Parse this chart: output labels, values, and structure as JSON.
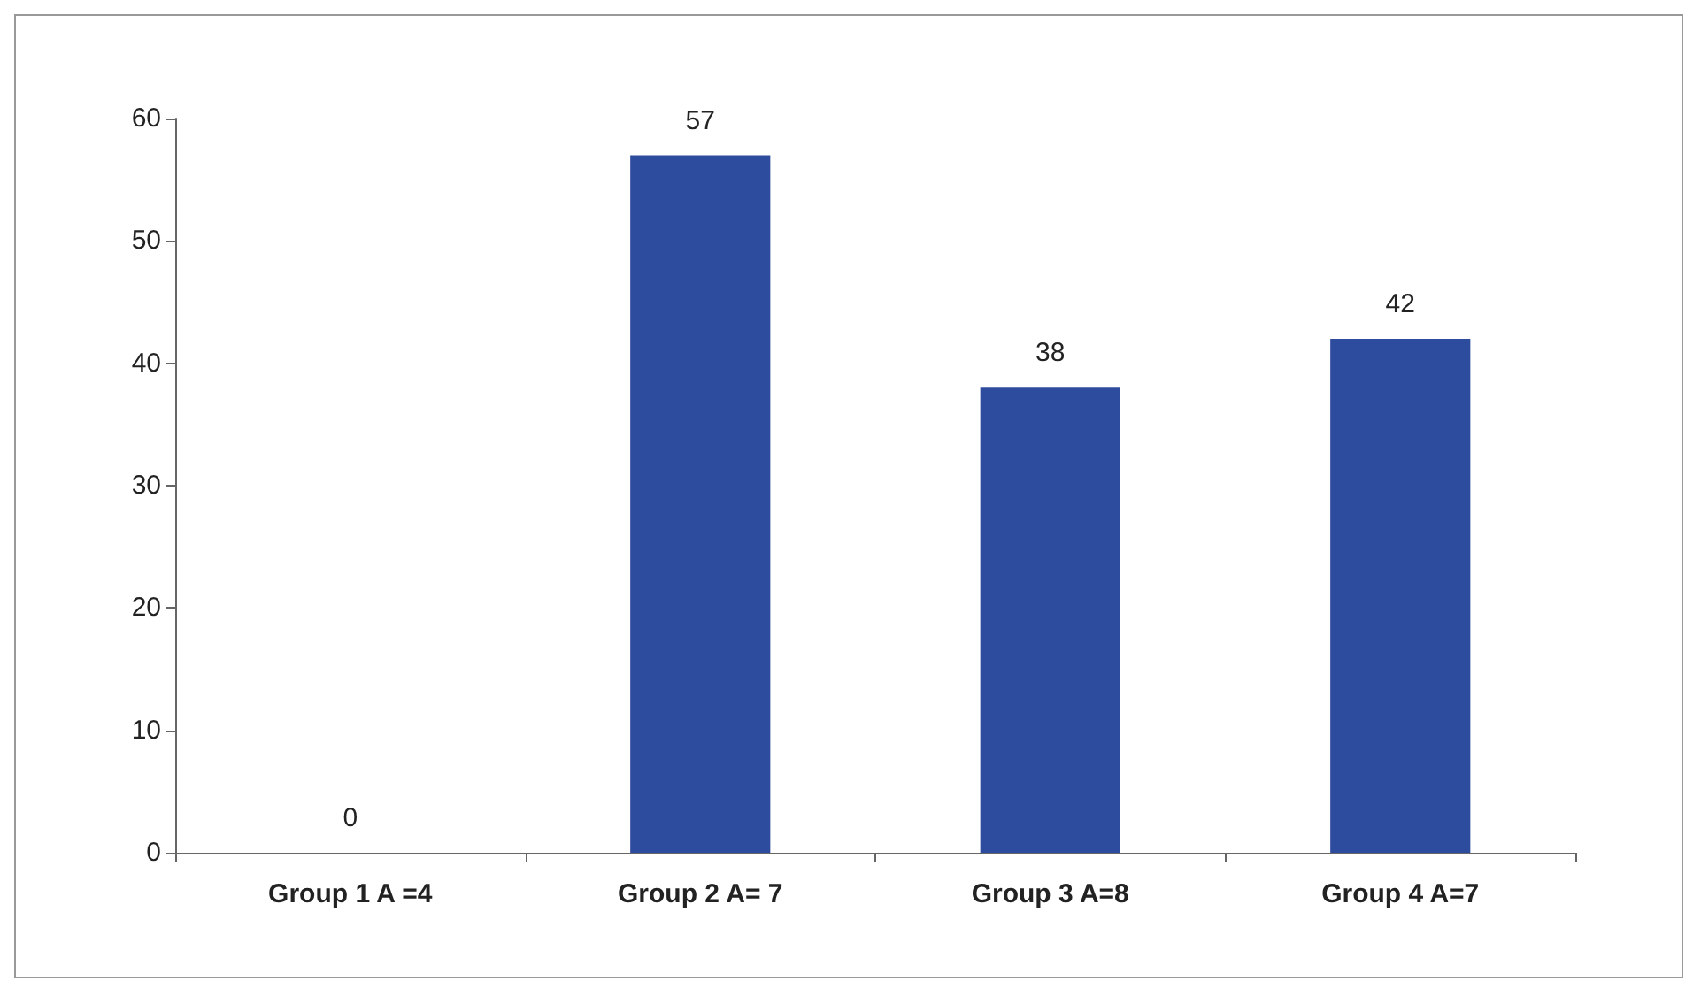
{
  "chart_data": {
    "type": "bar",
    "categories": [
      "Group 1 A =4",
      "Group 2 A= 7",
      "Group 3 A=8",
      "Group 4 A=7"
    ],
    "values": [
      0,
      57,
      38,
      42
    ],
    "color": "#2e4c9e",
    "ylim": [
      0,
      60
    ],
    "yticks": [
      0,
      10,
      20,
      30,
      40,
      50,
      60
    ],
    "grid": false,
    "data_labels": true
  }
}
